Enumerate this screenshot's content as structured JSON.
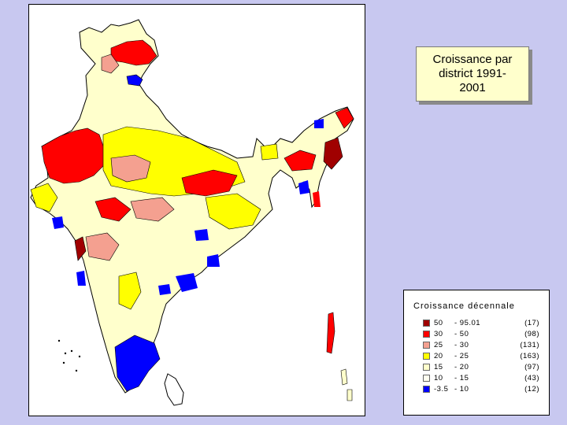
{
  "title": "Croissance par district 1991-2001",
  "legend": {
    "title": "Croissance décennale",
    "items": [
      {
        "low": "50",
        "high": "- 95.01",
        "count": "(17)",
        "color": "#a00000"
      },
      {
        "low": "30",
        "high": "- 50",
        "count": "(98)",
        "color": "#ff0000"
      },
      {
        "low": "25",
        "high": "- 30",
        "count": "(131)",
        "color": "#f4a090"
      },
      {
        "low": "20",
        "high": "- 25",
        "count": "(163)",
        "color": "#ffff00"
      },
      {
        "low": "15",
        "high": "- 20",
        "count": "(97)",
        "color": "#ffffcc"
      },
      {
        "low": "10",
        "high": "- 15",
        "count": "(43)",
        "color": "#fffff0"
      },
      {
        "low": "-3.5",
        "high": "- 10",
        "count": "(12)",
        "color": "#0000ff"
      }
    ]
  },
  "colors": {
    "background": "#c8c8f0",
    "outline": "#000000",
    "title_box": "#ffffcc"
  }
}
